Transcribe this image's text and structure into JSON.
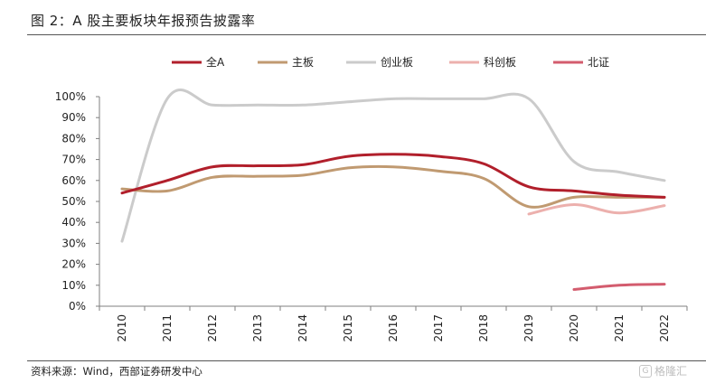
{
  "figure_title": "图 2：A 股主要板块年报预告披露率",
  "source": "资料来源：Wind，西部证券研发中心",
  "watermark": {
    "glyph": "G",
    "text": "格隆汇"
  },
  "chart_data": {
    "type": "line",
    "x": [
      "2010",
      "2011",
      "2012",
      "2013",
      "2014",
      "2015",
      "2016",
      "2017",
      "2018",
      "2019",
      "2020",
      "2021",
      "2022"
    ],
    "y_ticks": [
      "0%",
      "10%",
      "20%",
      "30%",
      "40%",
      "50%",
      "60%",
      "70%",
      "80%",
      "90%",
      "100%"
    ],
    "ylim": [
      0,
      100
    ],
    "legend_position": "top",
    "series": [
      {
        "name": "全A",
        "color": "#b11f2b",
        "values": [
          54,
          60,
          66.5,
          67,
          67.5,
          71.5,
          72.5,
          71.5,
          68,
          57,
          55,
          53,
          52
        ]
      },
      {
        "name": "主板",
        "color": "#c09a71",
        "values": [
          56,
          55,
          61.5,
          62,
          62.5,
          66,
          66.5,
          64.5,
          61,
          47.5,
          52,
          52,
          52
        ]
      },
      {
        "name": "创业板",
        "color": "#cbcbcb",
        "values": [
          31,
          99,
          96,
          96,
          96,
          97.5,
          99,
          99,
          99,
          99,
          69,
          64,
          60
        ]
      },
      {
        "name": "科创板",
        "color": "#ecb0ad",
        "values": [
          null,
          null,
          null,
          null,
          null,
          null,
          null,
          null,
          null,
          44,
          48.5,
          44.5,
          48
        ]
      },
      {
        "name": "北证",
        "color": "#d35c6e",
        "values": [
          null,
          null,
          null,
          null,
          null,
          null,
          null,
          null,
          null,
          null,
          8,
          10,
          10.5
        ]
      }
    ]
  }
}
